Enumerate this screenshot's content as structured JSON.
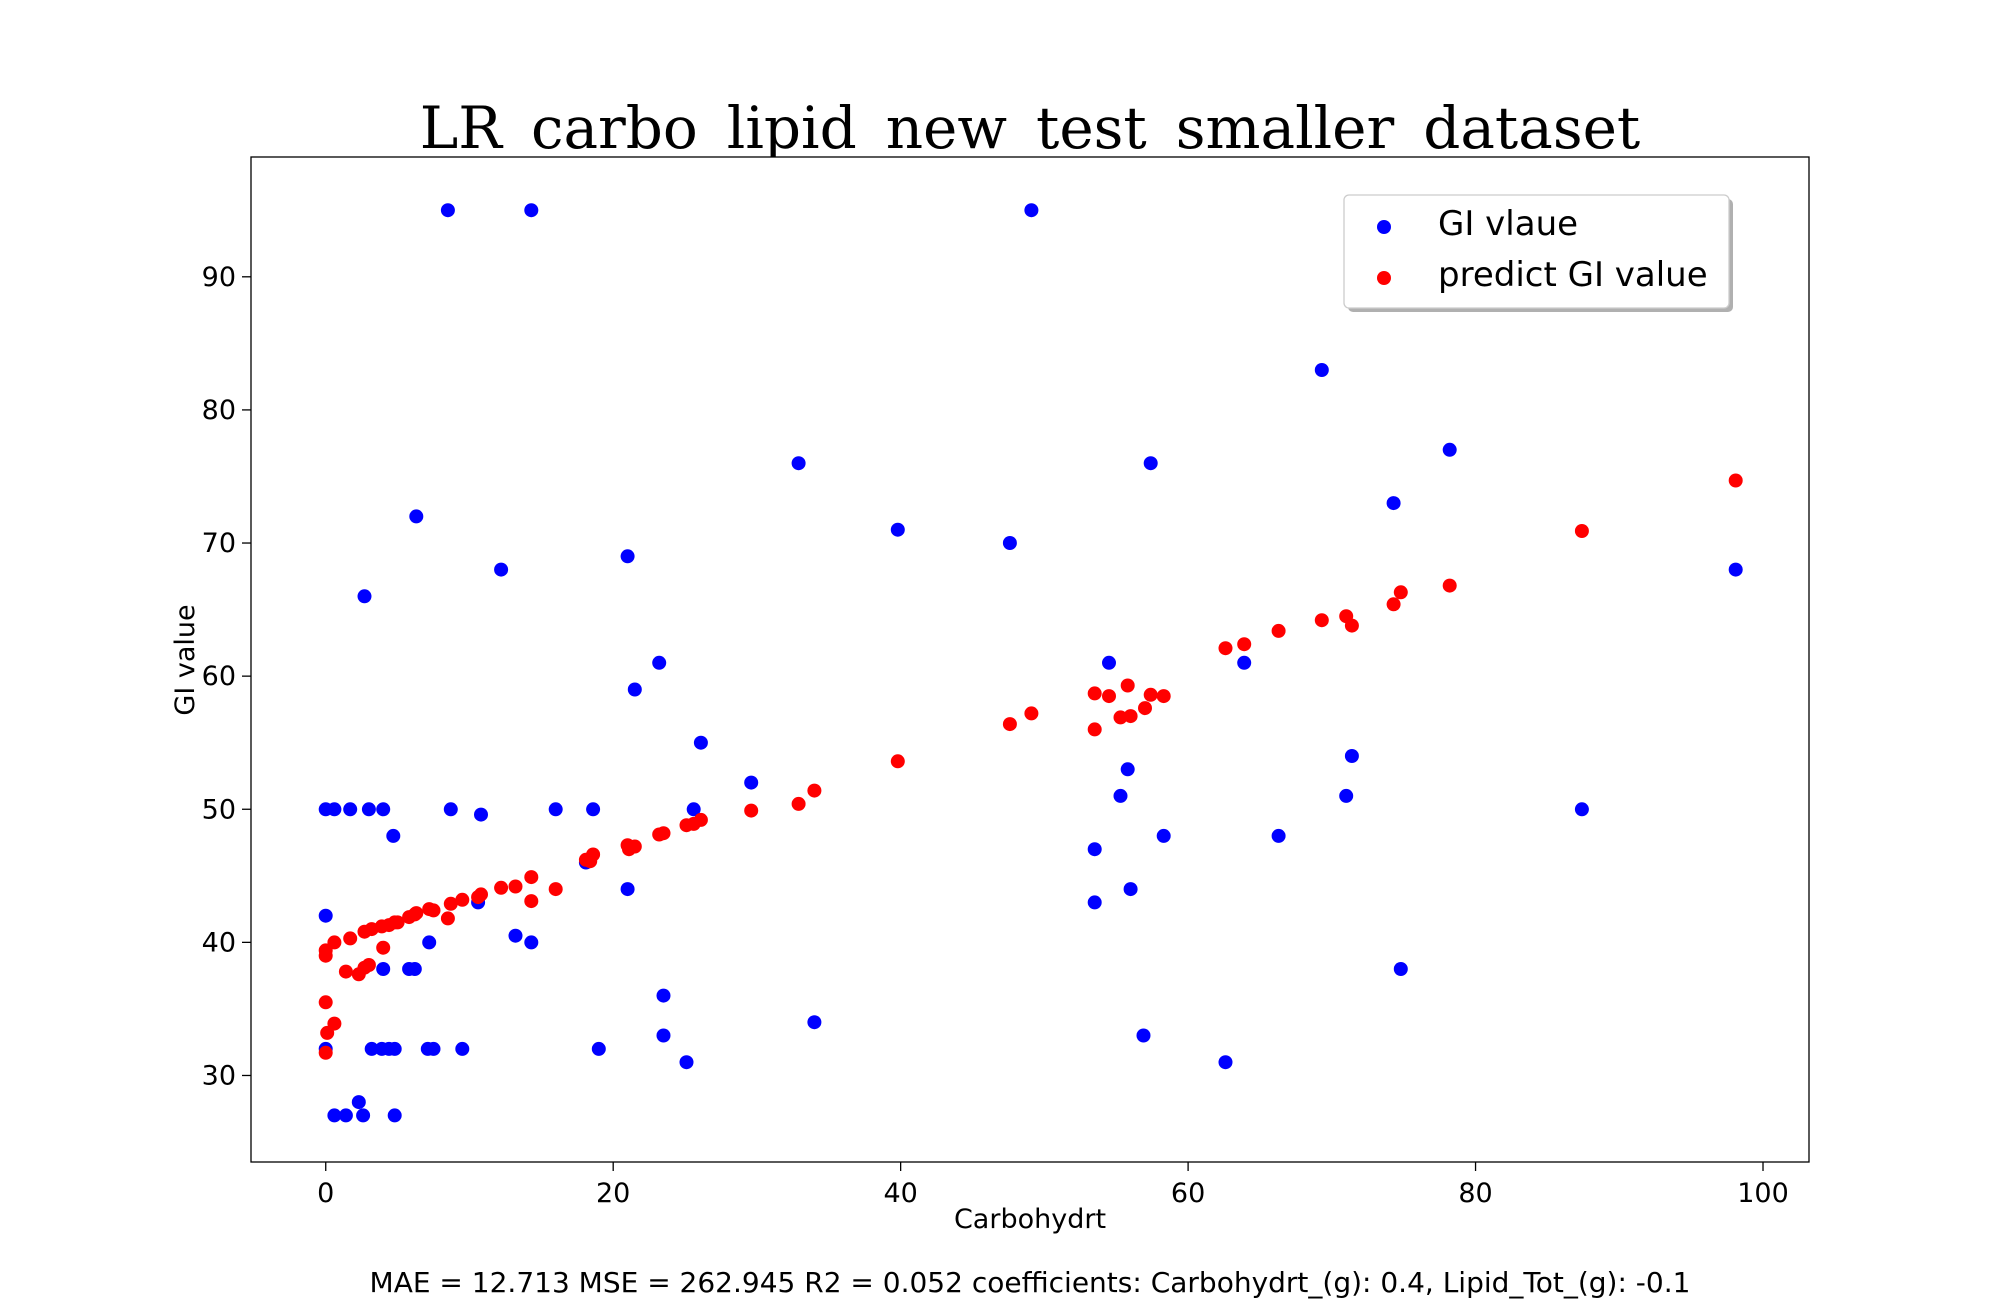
{
  "chart_data": {
    "type": "scatter",
    "title": "LR_carbo_lipid_new_test_smaller_dataset",
    "xlabel": "Carbohydrt",
    "ylabel": "GI value",
    "xlim": [
      -5.2,
      103.2
    ],
    "ylim": [
      23.5,
      99
    ],
    "xticks": [
      0,
      20,
      40,
      60,
      80,
      100
    ],
    "yticks": [
      30,
      40,
      50,
      60,
      70,
      80,
      90
    ],
    "grid": false,
    "legend_position": "top-right",
    "footer": "MAE = 12.713 MSE = 262.945 R2 = 0.052 coefficients: Carbohydrt_(g): 0.4, Lipid_Tot_(g): -0.1",
    "series": [
      {
        "name": "GI vlaue",
        "color": "#0000ff",
        "points": [
          [
            8.5,
            95
          ],
          [
            14.3,
            95
          ],
          [
            49.1,
            95
          ],
          [
            69.3,
            83
          ],
          [
            78.2,
            77
          ],
          [
            32.9,
            76
          ],
          [
            57.4,
            76
          ],
          [
            74.3,
            73
          ],
          [
            6.3,
            72
          ],
          [
            39.8,
            71
          ],
          [
            47.6,
            70
          ],
          [
            21.0,
            69
          ],
          [
            12.2,
            68
          ],
          [
            98.1,
            68
          ],
          [
            2.7,
            66
          ],
          [
            23.2,
            61
          ],
          [
            54.5,
            61
          ],
          [
            63.9,
            61
          ],
          [
            21.5,
            59
          ],
          [
            26.1,
            55
          ],
          [
            71.4,
            54
          ],
          [
            55.8,
            53
          ],
          [
            29.6,
            52
          ],
          [
            71.0,
            51
          ],
          [
            55.3,
            51
          ],
          [
            0.0,
            50
          ],
          [
            0.6,
            50
          ],
          [
            1.7,
            50
          ],
          [
            3.0,
            50
          ],
          [
            4.0,
            50
          ],
          [
            8.7,
            50
          ],
          [
            16.0,
            50
          ],
          [
            18.6,
            50
          ],
          [
            25.6,
            50
          ],
          [
            87.4,
            50
          ],
          [
            10.8,
            49.6
          ],
          [
            4.7,
            48
          ],
          [
            58.3,
            48
          ],
          [
            66.3,
            48
          ],
          [
            53.5,
            47
          ],
          [
            18.1,
            46
          ],
          [
            21.0,
            44
          ],
          [
            56.0,
            44
          ],
          [
            10.6,
            43
          ],
          [
            53.5,
            43
          ],
          [
            0.0,
            42
          ],
          [
            13.2,
            40.5
          ],
          [
            14.3,
            40
          ],
          [
            7.2,
            40
          ],
          [
            4.0,
            38
          ],
          [
            5.8,
            38
          ],
          [
            6.2,
            38
          ],
          [
            74.8,
            38
          ],
          [
            23.5,
            36
          ],
          [
            34.0,
            34
          ],
          [
            23.5,
            33
          ],
          [
            56.9,
            33
          ],
          [
            25.1,
            31
          ],
          [
            62.6,
            31
          ],
          [
            0.0,
            32
          ],
          [
            3.2,
            32
          ],
          [
            3.9,
            32
          ],
          [
            4.4,
            32
          ],
          [
            4.8,
            32
          ],
          [
            7.1,
            32
          ],
          [
            7.5,
            32
          ],
          [
            9.5,
            32
          ],
          [
            19.0,
            32
          ],
          [
            2.3,
            28
          ],
          [
            0.6,
            27
          ],
          [
            1.4,
            27
          ],
          [
            2.6,
            27
          ],
          [
            4.8,
            27
          ]
        ]
      },
      {
        "name": "predict GI value",
        "color": "#ff0000",
        "points": [
          [
            98.1,
            74.7
          ],
          [
            87.4,
            70.9
          ],
          [
            78.2,
            66.8
          ],
          [
            74.8,
            66.3
          ],
          [
            74.3,
            65.4
          ],
          [
            71.4,
            63.8
          ],
          [
            71.0,
            64.5
          ],
          [
            69.3,
            64.2
          ],
          [
            66.3,
            63.4
          ],
          [
            63.9,
            62.4
          ],
          [
            62.6,
            62.1
          ],
          [
            55.8,
            59.3
          ],
          [
            53.5,
            58.7
          ],
          [
            54.5,
            58.5
          ],
          [
            57.4,
            58.6
          ],
          [
            58.3,
            58.5
          ],
          [
            57.0,
            57.6
          ],
          [
            49.1,
            57.2
          ],
          [
            56.0,
            57.0
          ],
          [
            55.3,
            56.9
          ],
          [
            47.6,
            56.4
          ],
          [
            53.5,
            56.0
          ],
          [
            39.8,
            53.6
          ],
          [
            34.0,
            51.4
          ],
          [
            32.9,
            50.4
          ],
          [
            29.6,
            49.9
          ],
          [
            26.1,
            49.2
          ],
          [
            25.6,
            48.9
          ],
          [
            25.1,
            48.8
          ],
          [
            23.5,
            48.2
          ],
          [
            23.2,
            48.1
          ],
          [
            21.5,
            47.2
          ],
          [
            21.0,
            47.3
          ],
          [
            21.1,
            47.0
          ],
          [
            18.6,
            46.6
          ],
          [
            18.1,
            46.2
          ],
          [
            18.4,
            46.1
          ],
          [
            14.3,
            44.9
          ],
          [
            16.0,
            44.0
          ],
          [
            13.2,
            44.2
          ],
          [
            12.2,
            44.1
          ],
          [
            10.8,
            43.6
          ],
          [
            10.6,
            43.4
          ],
          [
            9.5,
            43.2
          ],
          [
            14.3,
            43.1
          ],
          [
            8.7,
            42.9
          ],
          [
            7.2,
            42.5
          ],
          [
            7.5,
            42.4
          ],
          [
            6.2,
            42.1
          ],
          [
            6.3,
            42.2
          ],
          [
            5.8,
            41.9
          ],
          [
            8.5,
            41.8
          ],
          [
            5.0,
            41.5
          ],
          [
            4.8,
            41.5
          ],
          [
            4.4,
            41.3
          ],
          [
            3.9,
            41.2
          ],
          [
            3.2,
            41.0
          ],
          [
            2.7,
            40.8
          ],
          [
            1.7,
            40.3
          ],
          [
            0.6,
            40.0
          ],
          [
            4.0,
            39.6
          ],
          [
            0.0,
            39.4
          ],
          [
            0.0,
            39.0
          ],
          [
            3.0,
            38.3
          ],
          [
            2.7,
            38.1
          ],
          [
            2.3,
            37.6
          ],
          [
            1.4,
            37.8
          ],
          [
            0.0,
            35.5
          ],
          [
            0.6,
            33.9
          ],
          [
            0.1,
            33.2
          ],
          [
            0.0,
            31.7
          ]
        ]
      }
    ]
  }
}
